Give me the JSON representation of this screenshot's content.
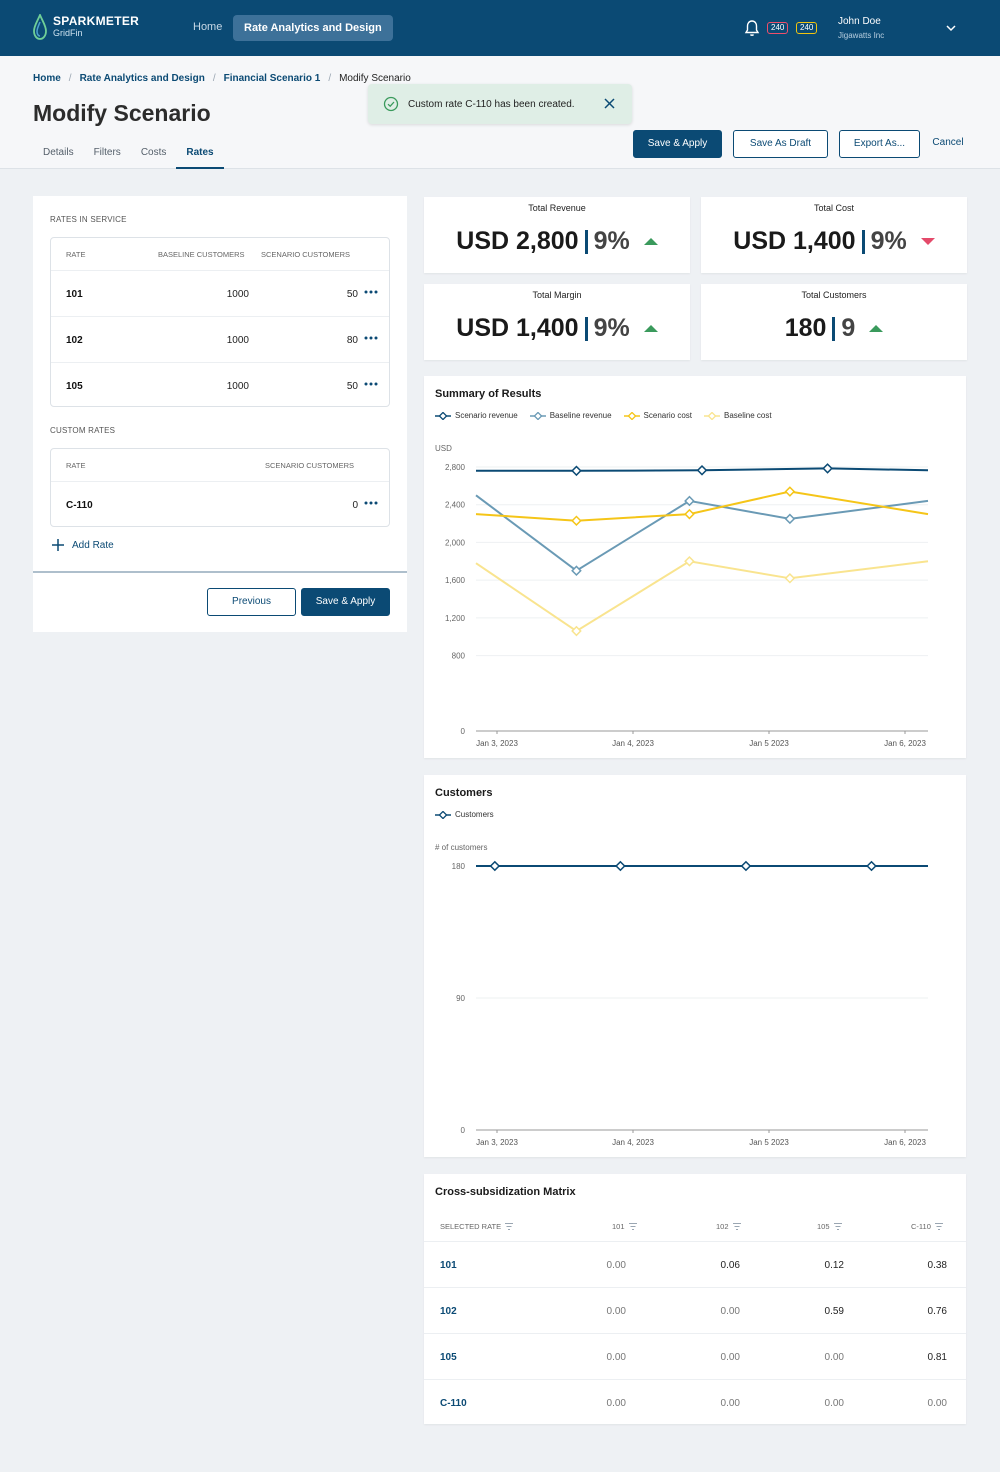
{
  "header": {
    "logo_title": "SPARKMETER",
    "logo_sub": "GridFin",
    "nav_home": "Home",
    "nav_active": "Rate Analytics and Design",
    "badge_red": "240",
    "badge_yellow": "240",
    "user_name": "John Doe",
    "user_org": "Jigawatts Inc"
  },
  "breadcrumb": {
    "items": [
      "Home",
      "Rate Analytics and Design",
      "Financial Scenario 1"
    ],
    "current": "Modify Scenario"
  },
  "page_title": "Modify Scenario",
  "tabs": [
    {
      "label": "Details",
      "active": false
    },
    {
      "label": "Filters",
      "active": false
    },
    {
      "label": "Costs",
      "active": false
    },
    {
      "label": "Rates",
      "active": true
    }
  ],
  "toast": {
    "message": "Custom rate C-110 has been created."
  },
  "actions": {
    "save_apply": "Save & Apply",
    "save_draft": "Save As Draft",
    "export": "Export As...",
    "cancel": "Cancel"
  },
  "rates_in_service": {
    "label": "RATES IN SERVICE",
    "headers": [
      "RATE",
      "BASELINE CUSTOMERS",
      "SCENARIO CUSTOMERS"
    ],
    "rows": [
      {
        "rate": "101",
        "baseline": "1000",
        "scenario": "50"
      },
      {
        "rate": "102",
        "baseline": "1000",
        "scenario": "80"
      },
      {
        "rate": "105",
        "baseline": "1000",
        "scenario": "50"
      }
    ]
  },
  "custom_rates": {
    "label": "CUSTOM RATES",
    "headers": [
      "RATE",
      "SCENARIO CUSTOMERS"
    ],
    "rows": [
      {
        "rate": "C-110",
        "scenario": "0"
      }
    ]
  },
  "add_rate": "Add Rate",
  "panel_buttons": {
    "previous": "Previous",
    "save_apply": "Save & Apply"
  },
  "kpis": [
    {
      "label": "Total Revenue",
      "value": "USD 2,800",
      "pct": "9%",
      "trend": "up"
    },
    {
      "label": "Total Cost",
      "value": "USD 1,400",
      "pct": "9%",
      "trend": "down"
    },
    {
      "label": "Total Margin",
      "value": "USD 1,400",
      "pct": "9%",
      "trend": "up"
    },
    {
      "label": "Total Customers",
      "value": "180",
      "pct": "9",
      "trend": "up"
    }
  ],
  "colors": {
    "primary": "#0b4a74",
    "scenario_revenue": "#0b4a74",
    "baseline_revenue": "#6a9ab5",
    "scenario_cost": "#f5c518",
    "baseline_cost": "#f9e48f",
    "up": "#3a9a5c",
    "down": "#e44a6a"
  },
  "chart_data": [
    {
      "type": "line",
      "title": "Summary of Results",
      "ylabel": "USD",
      "categories": [
        "Jan 3, 2023",
        "Jan 4, 2023",
        "Jan 5 2023",
        "Jan 6, 2023"
      ],
      "yticks": [
        0,
        800,
        1200,
        1600,
        2000,
        2400,
        2800
      ],
      "ylim": [
        0,
        2800
      ],
      "legend": "top-left",
      "grid": true,
      "series": [
        {
          "name": "Scenario revenue",
          "color": "#0b4a74",
          "x": [
            0,
            0.8,
            1.8,
            2.8,
            3.6
          ],
          "y": [
            2760,
            2760,
            2765,
            2785,
            2765
          ],
          "markers": [
            0.8,
            1.8,
            2.8
          ]
        },
        {
          "name": "Baseline revenue",
          "color": "#6a9ab5",
          "x": [
            0,
            0.8,
            1.7,
            2.5,
            3.6
          ],
          "y": [
            2500,
            1700,
            2440,
            2250,
            2440
          ],
          "markers": [
            0.8,
            1.7,
            2.5
          ]
        },
        {
          "name": "Scenario cost",
          "color": "#f5c518",
          "x": [
            0,
            0.8,
            1.7,
            2.5,
            3.6
          ],
          "y": [
            2300,
            2230,
            2300,
            2540,
            2300
          ],
          "markers": [
            0.8,
            1.7,
            2.5
          ]
        },
        {
          "name": "Baseline cost",
          "color": "#f9e48f",
          "x": [
            0,
            0.8,
            1.7,
            2.5,
            3.6
          ],
          "y": [
            1780,
            1060,
            1800,
            1620,
            1800
          ],
          "markers": [
            0.8,
            1.7,
            2.5
          ]
        }
      ]
    },
    {
      "type": "line",
      "title": "Customers",
      "ylabel": "# of customers",
      "categories": [
        "Jan 3, 2023",
        "Jan 4, 2023",
        "Jan 5 2023",
        "Jan 6, 2023"
      ],
      "yticks": [
        0,
        90,
        180
      ],
      "ylim": [
        0,
        180
      ],
      "legend": "top-left",
      "grid": true,
      "series": [
        {
          "name": "Customers",
          "color": "#0b4a74",
          "x": [
            0,
            0.15,
            1.15,
            2.15,
            3.15,
            3.6
          ],
          "y": [
            180,
            180,
            180,
            180,
            180,
            180
          ],
          "markers": [
            0.15,
            1.15,
            2.15,
            3.15
          ]
        }
      ]
    },
    {
      "type": "table",
      "title": "Cross-subsidization Matrix",
      "headers": [
        "SELECTED RATE",
        "101",
        "102",
        "105",
        "C-110"
      ],
      "rows": [
        {
          "rate": "101",
          "values": [
            "0.00",
            "0.06",
            "0.12",
            "0.38"
          ]
        },
        {
          "rate": "102",
          "values": [
            "0.00",
            "0.00",
            "0.59",
            "0.76"
          ]
        },
        {
          "rate": "105",
          "values": [
            "0.00",
            "0.00",
            "0.00",
            "0.81"
          ]
        },
        {
          "rate": "C-110",
          "values": [
            "0.00",
            "0.00",
            "0.00",
            "0.00"
          ]
        }
      ]
    }
  ]
}
